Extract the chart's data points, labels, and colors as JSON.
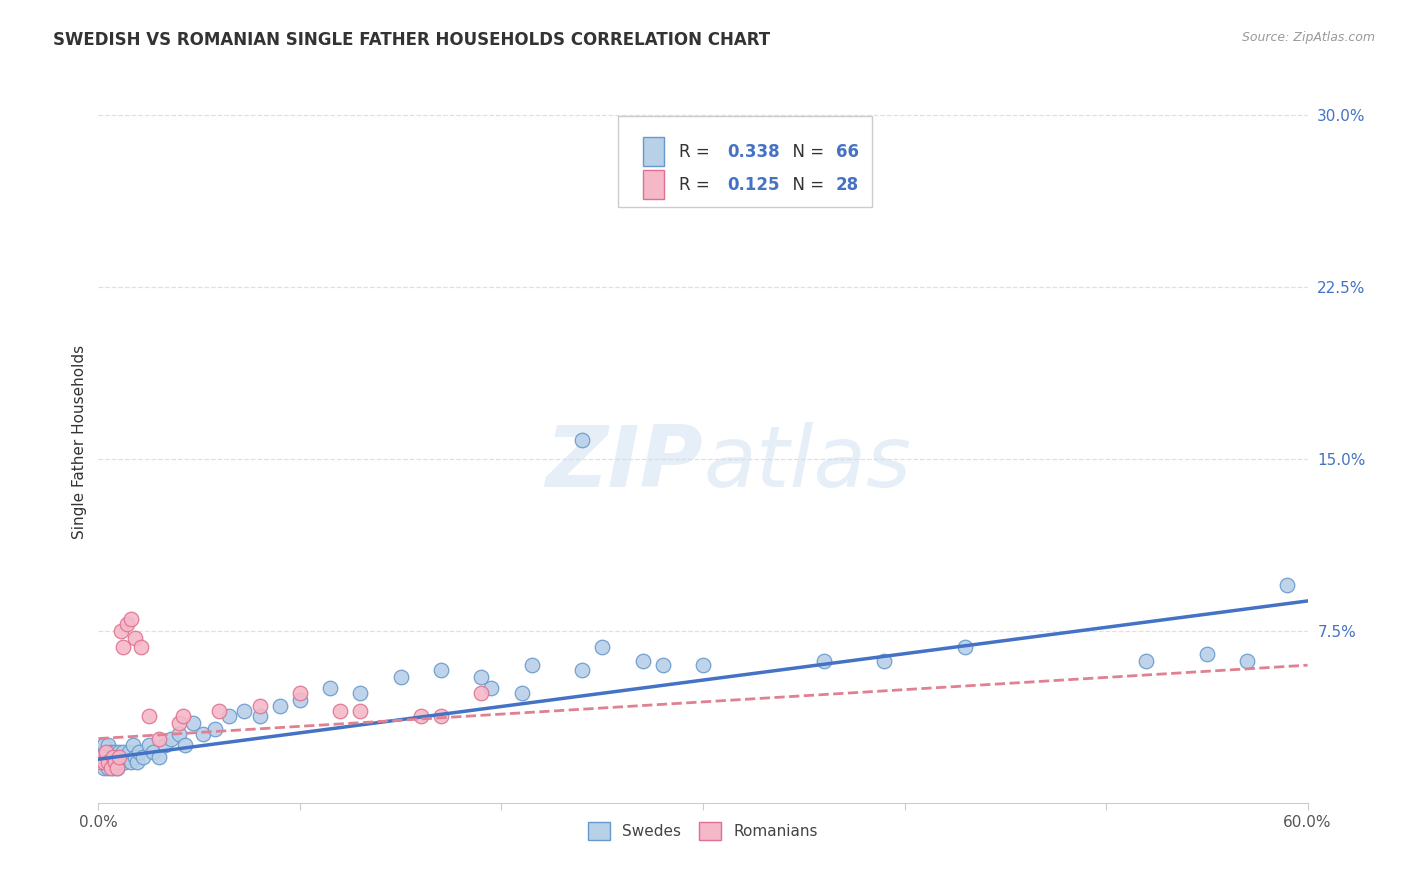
{
  "title": "SWEDISH VS ROMANIAN SINGLE FATHER HOUSEHOLDS CORRELATION CHART",
  "source": "Source: ZipAtlas.com",
  "ylabel": "Single Father Households",
  "xlabel": "",
  "xlim": [
    0.0,
    0.6
  ],
  "ylim": [
    0.0,
    0.315
  ],
  "xtick_positions": [
    0.0,
    0.1,
    0.2,
    0.3,
    0.4,
    0.5,
    0.6
  ],
  "xtick_labels": [
    "0.0%",
    "",
    "",
    "",
    "",
    "",
    "60.0%"
  ],
  "ytick_positions": [
    0.0,
    0.075,
    0.15,
    0.225,
    0.3
  ],
  "ytick_labels": [
    "",
    "7.5%",
    "15.0%",
    "22.5%",
    "30.0%"
  ],
  "legend_r_swedish": "0.338",
  "legend_n_swedish": "66",
  "legend_r_romanian": "0.125",
  "legend_n_romanian": "28",
  "color_swedish_fill": "#b8d0e8",
  "color_swedish_edge": "#6699cc",
  "color_romanian_fill": "#f4b8c8",
  "color_romanian_edge": "#e07090",
  "color_swedish_line": "#4472c4",
  "color_romanian_line": "#e08090",
  "color_text_blue": "#4472c4",
  "color_text_dark": "#333333",
  "color_source": "#999999",
  "background_color": "#ffffff",
  "grid_color": "#e0e0e0",
  "swedish_x": [
    0.001,
    0.002,
    0.002,
    0.003,
    0.003,
    0.004,
    0.004,
    0.005,
    0.005,
    0.006,
    0.006,
    0.007,
    0.007,
    0.008,
    0.008,
    0.009,
    0.009,
    0.01,
    0.01,
    0.011,
    0.012,
    0.013,
    0.014,
    0.015,
    0.016,
    0.017,
    0.018,
    0.019,
    0.02,
    0.022,
    0.025,
    0.027,
    0.03,
    0.033,
    0.036,
    0.04,
    0.043,
    0.047,
    0.052,
    0.058,
    0.065,
    0.072,
    0.08,
    0.09,
    0.1,
    0.115,
    0.13,
    0.15,
    0.17,
    0.19,
    0.215,
    0.24,
    0.27,
    0.3,
    0.24,
    0.36,
    0.39,
    0.43,
    0.52,
    0.55,
    0.57,
    0.59,
    0.195,
    0.21,
    0.25,
    0.28
  ],
  "swedish_y": [
    0.02,
    0.018,
    0.022,
    0.015,
    0.025,
    0.018,
    0.022,
    0.015,
    0.025,
    0.018,
    0.022,
    0.015,
    0.02,
    0.018,
    0.022,
    0.015,
    0.02,
    0.018,
    0.022,
    0.02,
    0.022,
    0.018,
    0.02,
    0.022,
    0.018,
    0.025,
    0.02,
    0.018,
    0.022,
    0.02,
    0.025,
    0.022,
    0.02,
    0.025,
    0.028,
    0.03,
    0.025,
    0.035,
    0.03,
    0.032,
    0.038,
    0.04,
    0.038,
    0.042,
    0.045,
    0.05,
    0.048,
    0.055,
    0.058,
    0.055,
    0.06,
    0.058,
    0.062,
    0.06,
    0.158,
    0.062,
    0.062,
    0.068,
    0.062,
    0.065,
    0.062,
    0.095,
    0.05,
    0.048,
    0.068,
    0.06
  ],
  "romanian_x": [
    0.001,
    0.002,
    0.003,
    0.004,
    0.005,
    0.006,
    0.007,
    0.008,
    0.009,
    0.01,
    0.011,
    0.012,
    0.014,
    0.016,
    0.018,
    0.021,
    0.025,
    0.03,
    0.06,
    0.08,
    0.1,
    0.13,
    0.16,
    0.04,
    0.042,
    0.12,
    0.17,
    0.19
  ],
  "romanian_y": [
    0.018,
    0.02,
    0.018,
    0.022,
    0.018,
    0.015,
    0.02,
    0.018,
    0.015,
    0.02,
    0.075,
    0.068,
    0.078,
    0.08,
    0.072,
    0.068,
    0.038,
    0.028,
    0.04,
    0.042,
    0.048,
    0.04,
    0.038,
    0.035,
    0.038,
    0.04,
    0.038,
    0.048
  ],
  "swedish_line_x": [
    0.0,
    0.6
  ],
  "swedish_line_y": [
    0.019,
    0.088
  ],
  "romanian_line_x": [
    0.0,
    0.6
  ],
  "romanian_line_y": [
    0.028,
    0.06
  ]
}
